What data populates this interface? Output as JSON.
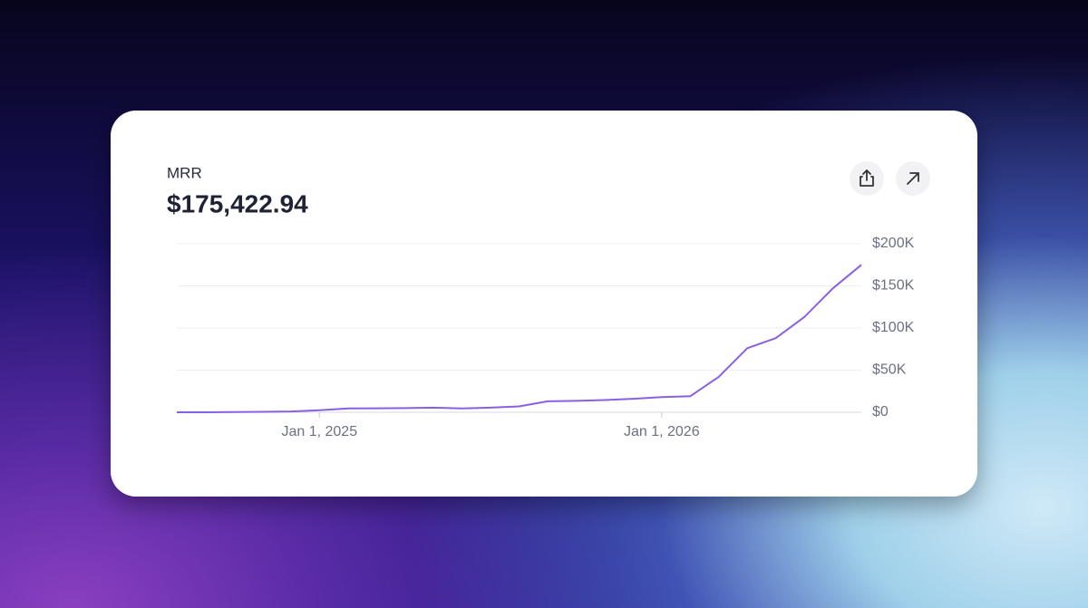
{
  "header": {
    "title": "MRR",
    "value": "$175,422.94"
  },
  "chart_data": {
    "type": "line",
    "x": [
      "2024-08",
      "2024-09",
      "2024-10",
      "2024-11",
      "2024-12",
      "2025-01",
      "2025-02",
      "2025-03",
      "2025-04",
      "2025-05",
      "2025-06",
      "2025-07",
      "2025-08",
      "2025-09",
      "2025-10",
      "2025-11",
      "2025-12",
      "2026-01",
      "2026-02",
      "2026-03",
      "2026-04",
      "2026-05",
      "2026-06",
      "2026-07",
      "2026-08"
    ],
    "values": [
      0,
      0,
      300,
      500,
      1000,
      2500,
      4500,
      4700,
      5000,
      5500,
      4500,
      5500,
      7000,
      13000,
      13500,
      14500,
      16000,
      18000,
      19000,
      42000,
      76000,
      88000,
      113000,
      147000,
      175000
    ],
    "color": "#8b5fe3",
    "xlim": [
      "2024-08",
      "2026-08"
    ],
    "xticks": [
      {
        "value": "2025-01",
        "label": "Jan 1, 2025"
      },
      {
        "value": "2026-01",
        "label": "Jan 1, 2026"
      }
    ],
    "ylim": [
      0,
      200000
    ],
    "yticks": [
      {
        "value": 0,
        "label": "$0"
      },
      {
        "value": 50000,
        "label": "$50K"
      },
      {
        "value": 100000,
        "label": "$100K"
      },
      {
        "value": 150000,
        "label": "$150K"
      },
      {
        "value": 200000,
        "label": "$200K"
      }
    ],
    "grid": true
  }
}
